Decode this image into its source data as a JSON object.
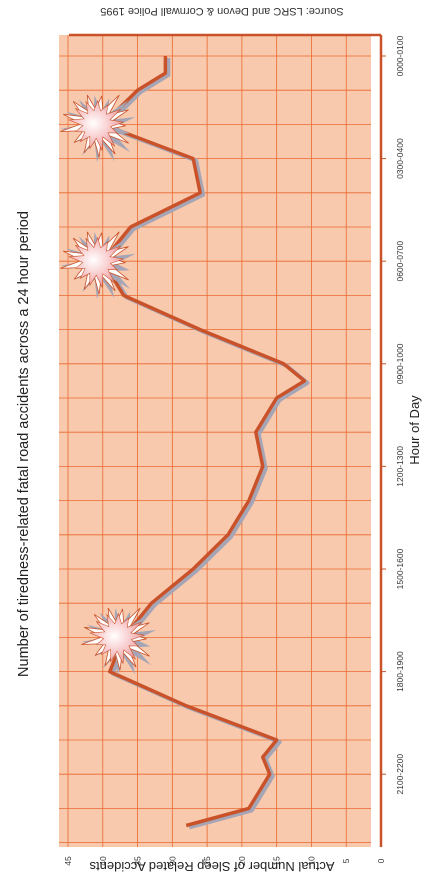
{
  "chart_data": {
    "type": "line",
    "title": "Number of tiredness-related fatal road accidents across a 24 hour period",
    "xlabel": "Hour of Day",
    "ylabel": "Actual Number of Sleep Related Accidents",
    "source": "Source: LSRC and Devon & Cornwall Police 1995",
    "ylim": [
      0,
      45
    ],
    "y_ticks": [
      0,
      5,
      10,
      15,
      20,
      25,
      30,
      35,
      40,
      45
    ],
    "x_tick_labels": [
      "0000-0100",
      "0300-0400",
      "0600-0700",
      "0900-1000",
      "1200-1300",
      "1500-1600",
      "1800-1900",
      "2100-2200"
    ],
    "x_tick_hours": [
      0,
      3,
      6,
      9,
      12,
      15,
      18,
      21
    ],
    "x": [
      0,
      0.5,
      1,
      2,
      3,
      4,
      5,
      6,
      7,
      8,
      9,
      9.5,
      10,
      11,
      12,
      13,
      14,
      15,
      16,
      17,
      18,
      19,
      20,
      20.5,
      21,
      22,
      22.5
    ],
    "values": [
      31,
      31,
      35,
      40,
      27,
      26,
      36,
      40,
      37,
      26,
      14,
      11,
      15,
      18,
      17,
      19,
      22,
      27,
      33,
      37,
      39,
      28,
      15,
      17,
      16,
      19,
      28
    ],
    "highlight_points": [
      [
        2,
        40
      ],
      [
        6,
        40
      ],
      [
        17,
        37
      ]
    ],
    "grid": true,
    "colors": {
      "plot_bg": "#f9c9ad",
      "grid": "#e8692f",
      "line": "#c9522a",
      "shadow": "#a5a5b5",
      "burst_fill": "#f6c3c6",
      "burst_outline": "#c9522a"
    }
  }
}
